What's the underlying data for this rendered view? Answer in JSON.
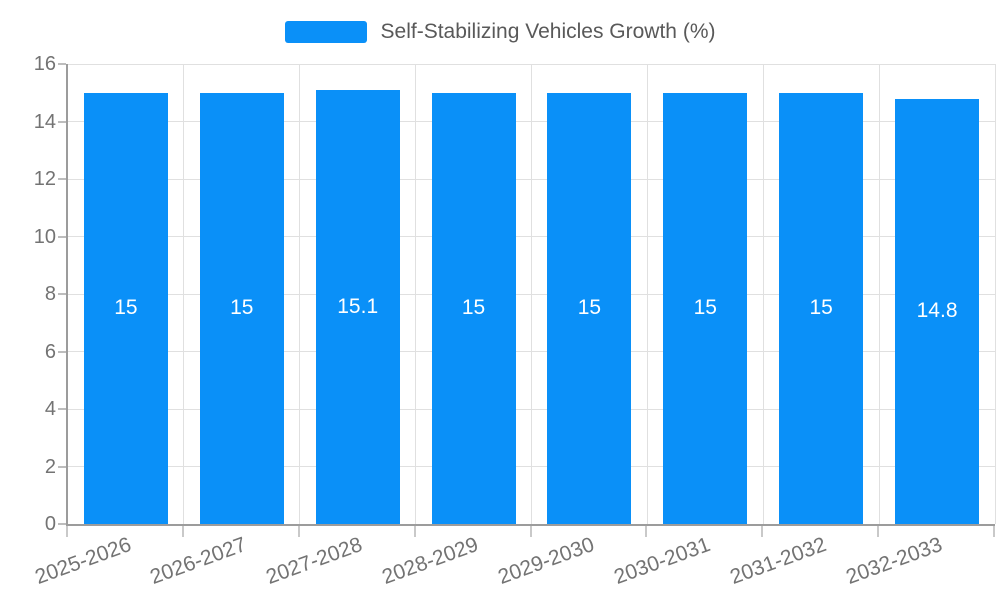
{
  "legend": {
    "label": "Self-Stabilizing Vehicles Growth (%)"
  },
  "chart_data": {
    "type": "bar",
    "title": "Self-Stabilizing Vehicles Growth (%)",
    "categories": [
      "2025-2026",
      "2026-2027",
      "2027-2028",
      "2028-2029",
      "2029-2030",
      "2030-2031",
      "2031-2032",
      "2032-2033"
    ],
    "values": [
      15,
      15,
      15.1,
      15,
      15,
      15,
      15,
      14.8
    ],
    "bar_labels": [
      "15",
      "15",
      "15.1",
      "15",
      "15",
      "15",
      "15",
      "14.8"
    ],
    "xlabel": "",
    "ylabel": "",
    "ylim": [
      0,
      16
    ],
    "yticks": [
      0,
      2,
      4,
      6,
      8,
      10,
      12,
      14,
      16
    ],
    "grid": true,
    "legend_position": "top-center",
    "bar_color": "#0a90f8",
    "bar_label_color": "#ffffff"
  },
  "colors": {
    "bar": "#0a90f8",
    "grid": "#e0e0e0",
    "axis": "#9c9c9c",
    "tick_text": "#737373",
    "legend_text": "#595959",
    "background": "#ffffff"
  }
}
